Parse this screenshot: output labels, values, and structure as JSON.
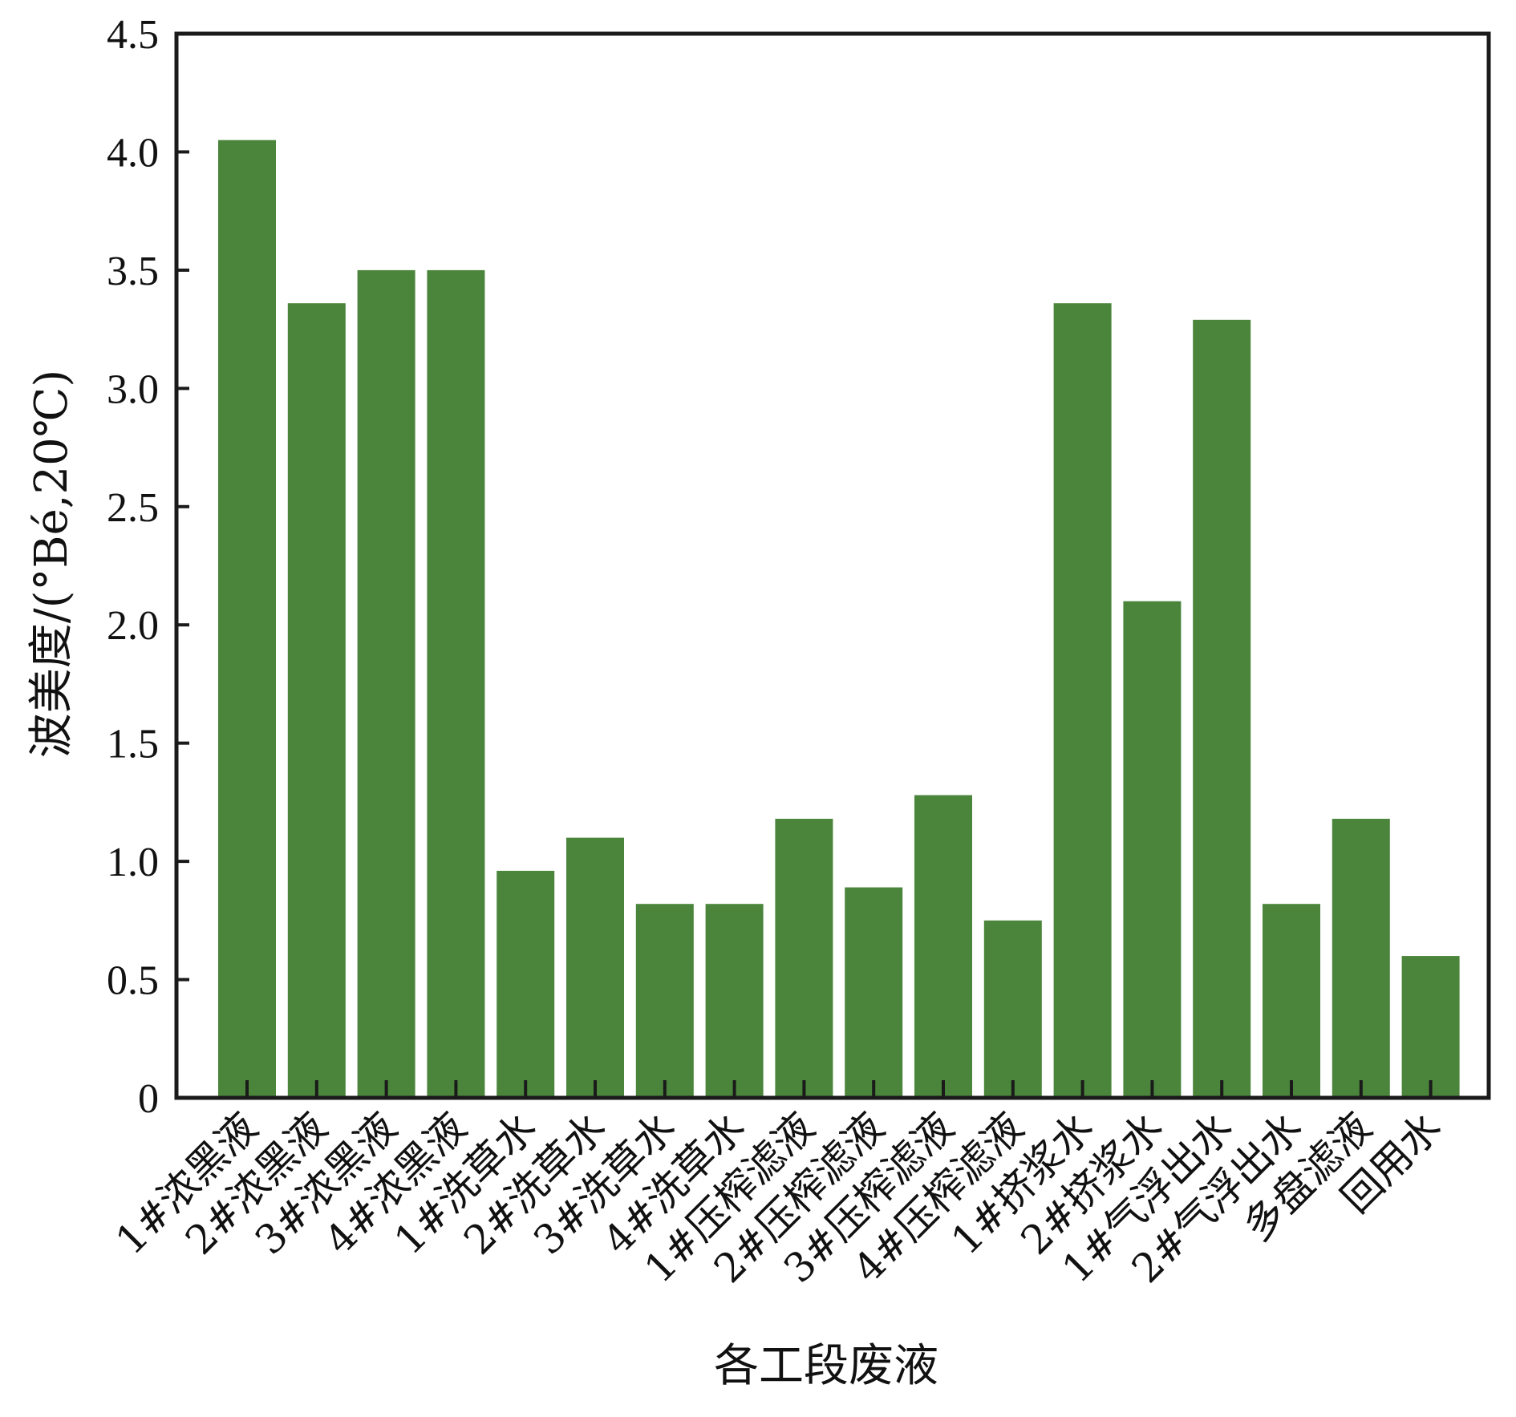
{
  "colors": {
    "bar": "#4a853b",
    "axis": "#1a1a1a",
    "background": "#ffffff"
  },
  "chart_data": {
    "type": "bar",
    "title": "",
    "xlabel": "各工段废液",
    "ylabel": "波美度/(°Bé,20℃)",
    "ylim": [
      0,
      4.5
    ],
    "yticks": [
      "0",
      "0.5",
      "1.0",
      "1.5",
      "2.0",
      "2.5",
      "3.0",
      "3.5",
      "4.0",
      "4.5"
    ],
    "ytick_values": [
      0,
      0.5,
      1.0,
      1.5,
      2.0,
      2.5,
      3.0,
      3.5,
      4.0,
      4.5
    ],
    "grid": false,
    "legend": "none",
    "categories": [
      "1#浓黑液",
      "2#浓黑液",
      "3#浓黑液",
      "4#浓黑液",
      "1#洗草水",
      "2#洗草水",
      "3#洗草水",
      "4#洗草水",
      "1#压榨滤液",
      "2#压榨滤液",
      "3#压榨滤液",
      "4#压榨滤液",
      "1#挤浆水",
      "2#挤浆水",
      "1#气浮出水",
      "2#气浮出水",
      "多盘滤液",
      "回用水"
    ],
    "values": [
      4.05,
      3.36,
      3.5,
      3.5,
      0.96,
      1.1,
      0.82,
      0.82,
      1.18,
      0.89,
      1.28,
      0.75,
      3.36,
      2.1,
      3.29,
      0.82,
      1.18,
      0.6
    ]
  }
}
